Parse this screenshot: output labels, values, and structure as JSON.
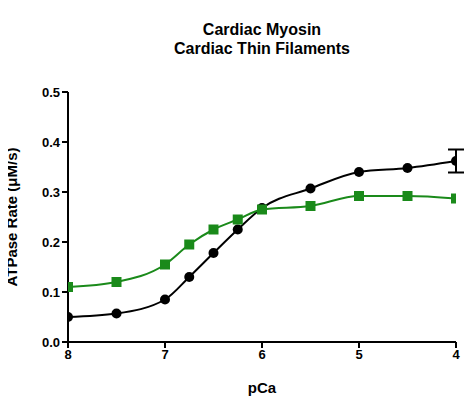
{
  "chart_data": {
    "type": "line",
    "title": "Cardiac Myosin",
    "subtitle": "Cardiac Thin Filaments",
    "x_label": "pCa",
    "y_label": "ATPase Rate (μM/s)",
    "x": [
      8,
      7.5,
      7,
      6.75,
      6.5,
      6.25,
      6,
      5.5,
      5,
      4.5,
      4
    ],
    "series": [
      {
        "color": "#000000",
        "marker": "circle",
        "values": [
          0.05,
          0.057,
          0.085,
          0.13,
          0.178,
          0.225,
          0.268,
          0.307,
          0.34,
          0.348,
          0.362
        ],
        "errors": [
          null,
          null,
          null,
          null,
          null,
          null,
          null,
          null,
          null,
          null,
          0.023
        ]
      },
      {
        "color": "#1a8a1a",
        "marker": "square",
        "values": [
          0.11,
          0.12,
          0.155,
          0.195,
          0.225,
          0.245,
          0.265,
          0.272,
          0.292,
          0.292,
          0.287
        ]
      }
    ],
    "xlim": [
      8,
      4
    ],
    "xticks": [
      8,
      7,
      6,
      5,
      4
    ],
    "ylim": [
      0,
      0.5
    ],
    "yticks": [
      {
        "value": 0,
        "label": "0.0"
      },
      0.1,
      0.2,
      0.3,
      0.4,
      0.5
    ],
    "grid": false
  }
}
